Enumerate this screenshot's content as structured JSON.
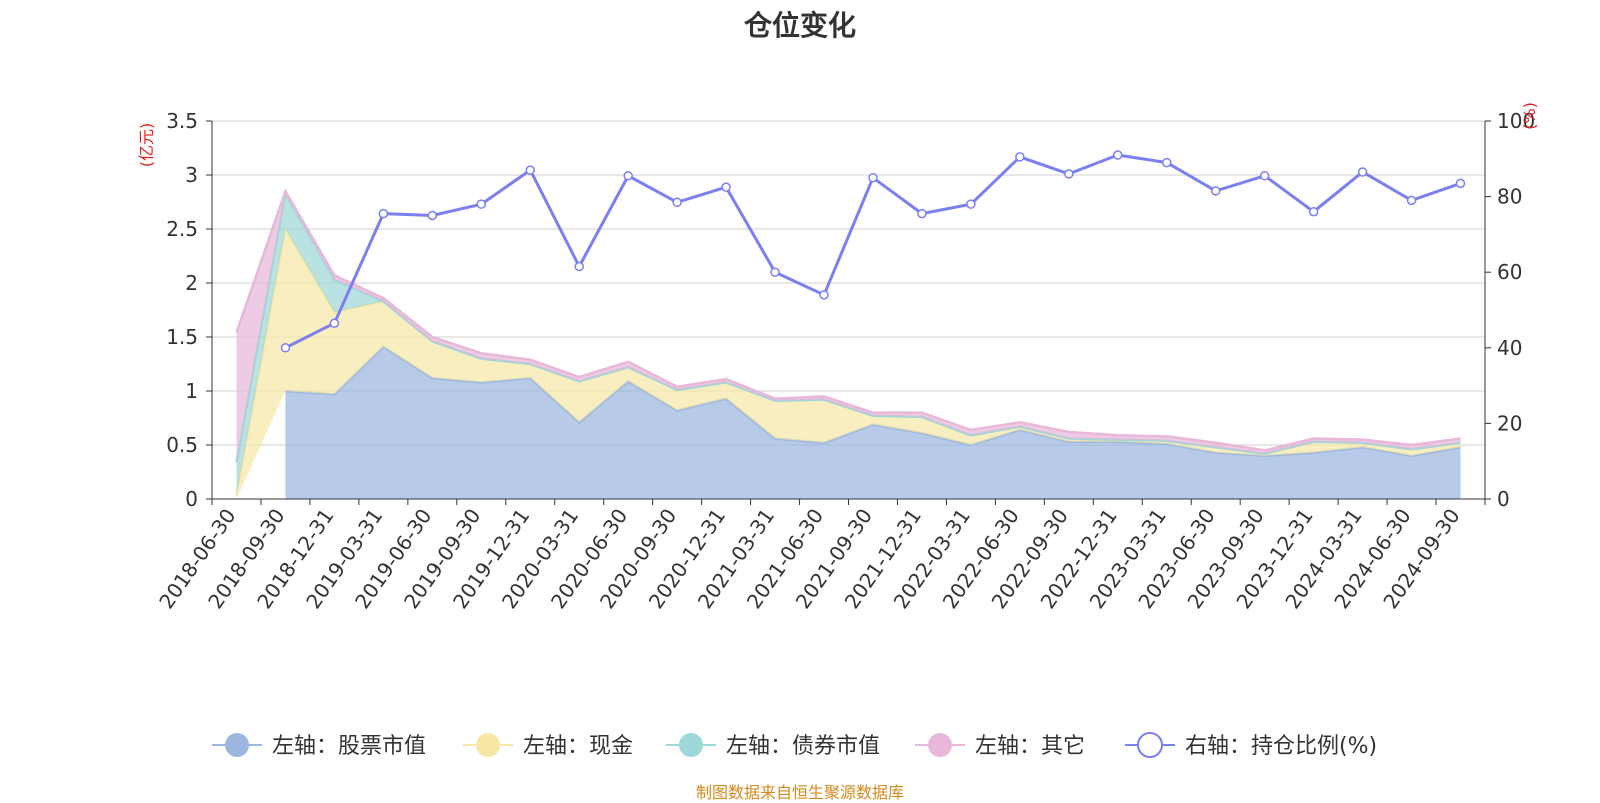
{
  "chart_data": {
    "type": "area",
    "title": "仓位变化",
    "source_note": "制图数据来自恒生聚源数据库",
    "left_axis": {
      "unit_label": "(亿元)",
      "ylim": [
        0,
        3.5
      ],
      "ticks": [
        "0",
        "0.5",
        "1",
        "1.5",
        "2",
        "2.5",
        "3",
        "3.5"
      ]
    },
    "right_axis": {
      "unit_label": "(%)",
      "ylim": [
        0,
        100
      ],
      "ticks": [
        "0",
        "20",
        "40",
        "60",
        "80",
        "100"
      ]
    },
    "categories": [
      "2018-06-30",
      "2018-09-30",
      "2018-12-31",
      "2019-03-31",
      "2019-06-30",
      "2019-09-30",
      "2019-12-31",
      "2020-03-31",
      "2020-06-30",
      "2020-09-30",
      "2020-12-31",
      "2021-03-31",
      "2021-06-30",
      "2021-09-30",
      "2021-12-31",
      "2022-03-31",
      "2022-06-30",
      "2022-09-30",
      "2022-12-31",
      "2023-03-31",
      "2023-06-30",
      "2023-09-30",
      "2023-12-31",
      "2024-03-31",
      "2024-06-30",
      "2024-09-30"
    ],
    "series": [
      {
        "name": "左轴：股票市值",
        "axis": "left",
        "color": "#9bb7e0",
        "values": [
          null,
          1.0,
          0.97,
          1.41,
          1.12,
          1.08,
          1.12,
          0.71,
          1.09,
          0.82,
          0.93,
          0.56,
          0.52,
          0.69,
          0.61,
          0.5,
          0.64,
          0.53,
          0.53,
          0.51,
          0.43,
          0.4,
          0.43,
          0.48,
          0.4,
          0.48
        ]
      },
      {
        "name": "左轴：现金",
        "axis": "left",
        "color": "#f7e7a6",
        "values": [
          0.03,
          1.5,
          0.76,
          0.42,
          0.34,
          0.22,
          0.13,
          0.38,
          0.13,
          0.19,
          0.15,
          0.35,
          0.4,
          0.08,
          0.15,
          0.09,
          0.03,
          0.03,
          0.02,
          0.03,
          0.05,
          0.02,
          0.1,
          0.04,
          0.06,
          0.04
        ]
      },
      {
        "name": "左轴：债券市值",
        "axis": "left",
        "color": "#9ed8d8",
        "values": [
          0.31,
          0.33,
          0.3,
          0.0,
          0.0,
          0.0,
          0.0,
          0.0,
          0.0,
          0.0,
          0.0,
          0.0,
          0.0,
          0.0,
          0.0,
          0.0,
          0.0,
          0.0,
          0.0,
          0.0,
          0.0,
          0.0,
          0.0,
          0.0,
          0.0,
          0.0
        ]
      },
      {
        "name": "左轴：其它",
        "axis": "left",
        "color": "#e8b7d9",
        "values": [
          1.2,
          0.02,
          0.04,
          0.03,
          0.04,
          0.05,
          0.04,
          0.04,
          0.05,
          0.03,
          0.03,
          0.02,
          0.03,
          0.03,
          0.04,
          0.05,
          0.04,
          0.06,
          0.04,
          0.04,
          0.04,
          0.03,
          0.03,
          0.03,
          0.04,
          0.04
        ]
      },
      {
        "name": "右轴：持仓比例(%)",
        "axis": "right",
        "color": "#7b7ff0",
        "values": [
          null,
          40,
          46.5,
          75.5,
          75,
          78,
          87,
          61.5,
          85.5,
          78.5,
          82.5,
          60,
          54,
          85,
          75.5,
          78,
          90.5,
          86,
          91,
          89,
          81.5,
          85.5,
          76,
          86.5,
          79,
          83.5
        ]
      }
    ],
    "grid": true,
    "legend_position": "bottom"
  }
}
